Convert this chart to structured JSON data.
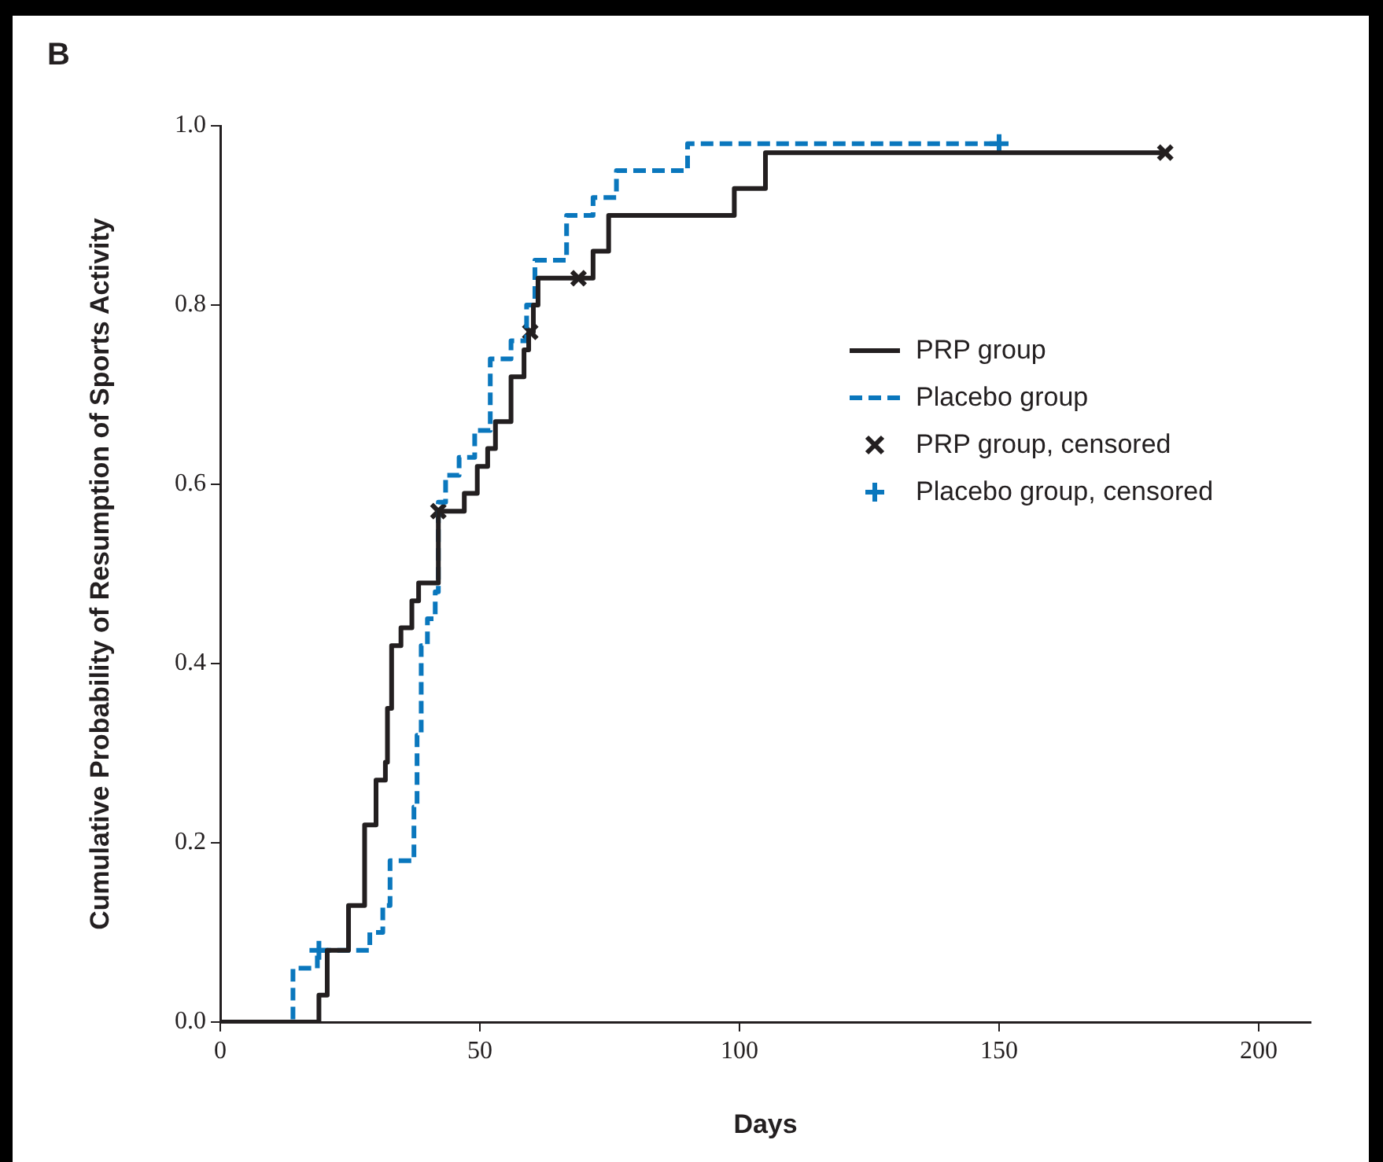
{
  "chart_data": {
    "type": "step",
    "title": "B",
    "xlabel": "Days",
    "ylabel": "Cumulative Probability of Resumption of Sports Activity",
    "xlim": [
      0,
      210
    ],
    "xticks": [
      0,
      50,
      100,
      150,
      200
    ],
    "ylim": [
      0,
      1.0
    ],
    "yticks": [
      {
        "value": 0,
        "label": "0.0"
      },
      {
        "value": 0.2,
        "label": "0.2"
      },
      {
        "value": 0.4,
        "label": "0.4"
      },
      {
        "value": 0.6,
        "label": "0.6"
      },
      {
        "value": 0.8,
        "label": "0.8"
      },
      {
        "value": 1.0,
        "label": "1.0"
      }
    ],
    "grid": false,
    "legend": "top right",
    "series": [
      {
        "name": "PRP group",
        "color": "#231f20",
        "line_style": "solid",
        "x": [
          0,
          19,
          20.6,
          24.7,
          27.8,
          30,
          31.8,
          32.2,
          33,
          34.8,
          36.9,
          38.2,
          42,
          47,
          49.5,
          51.5,
          53,
          56,
          58.5,
          59.4,
          60.3,
          61.2,
          71.8,
          74.8,
          99,
          105,
          182
        ],
        "values": [
          0,
          0.03,
          0.08,
          0.13,
          0.22,
          0.27,
          0.29,
          0.35,
          0.42,
          0.44,
          0.47,
          0.49,
          0.57,
          0.59,
          0.62,
          0.64,
          0.67,
          0.72,
          0.75,
          0.77,
          0.8,
          0.83,
          0.86,
          0.9,
          0.93,
          0.97,
          0.97
        ]
      },
      {
        "name": "Placebo group",
        "color": "#0a77bd",
        "line_style": "dashed",
        "x": [
          0,
          14,
          18.7,
          28.8,
          31.3,
          32.7,
          37.3,
          37.9,
          38.7,
          39.9,
          41.4,
          42,
          43.4,
          46,
          49,
          52,
          56,
          59,
          60.6,
          66.7,
          71.8,
          76.3,
          90,
          150
        ],
        "values": [
          0,
          0.06,
          0.08,
          0.1,
          0.13,
          0.18,
          0.24,
          0.32,
          0.42,
          0.45,
          0.48,
          0.58,
          0.61,
          0.63,
          0.66,
          0.74,
          0.76,
          0.8,
          0.85,
          0.9,
          0.92,
          0.95,
          0.98,
          0.98
        ]
      },
      {
        "name": "PRP group, censored",
        "type": "scatter",
        "marker": "x",
        "color": "#231f20",
        "x": [
          42,
          59.7,
          69,
          182
        ],
        "values": [
          0.57,
          0.77,
          0.83,
          0.97
        ]
      },
      {
        "name": "Placebo group, censored",
        "type": "scatter",
        "marker": "cross",
        "color": "#0a77bd",
        "x": [
          19,
          150
        ],
        "values": [
          0.08,
          0.98
        ]
      }
    ]
  }
}
